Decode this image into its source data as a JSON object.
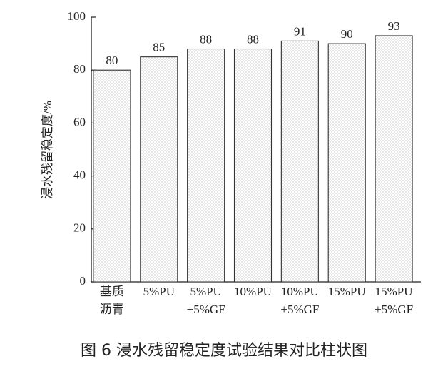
{
  "chart_data": {
    "type": "bar",
    "y_label": "浸水残留稳定度/%",
    "caption": "图 6  浸水残留稳定度试验结果对比柱状图",
    "categories": [
      [
        "基质",
        "沥青"
      ],
      [
        "5%PU"
      ],
      [
        "5%PU",
        "+5%GF"
      ],
      [
        "10%PU"
      ],
      [
        "10%PU",
        "+5%GF"
      ],
      [
        "15%PU"
      ],
      [
        "15%PU",
        "+5%GF"
      ]
    ],
    "values": [
      80,
      85,
      88,
      88,
      91,
      90,
      93
    ],
    "color": "#e8e8e8",
    "ylim": [
      0,
      100
    ],
    "yticks": [
      0,
      20,
      40,
      60,
      80,
      100
    ]
  }
}
